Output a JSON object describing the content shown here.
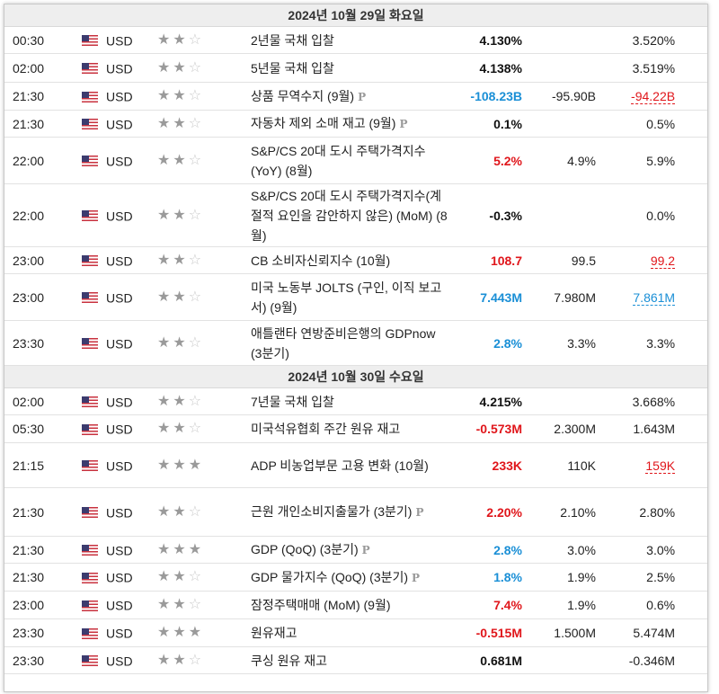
{
  "day1": {
    "header": "2024년 10월 29일 화요일",
    "rows": [
      {
        "time": "00:30",
        "currency": "USD",
        "stars": 2,
        "event": "2년물 국채 입찰",
        "pflag": false,
        "actual": "4.130%",
        "actual_class": "neu",
        "forecast": "",
        "previous": "3.520%",
        "previous_class": ""
      },
      {
        "time": "02:00",
        "currency": "USD",
        "stars": 2,
        "event": "5년물 국채 입찰",
        "pflag": false,
        "actual": "4.138%",
        "actual_class": "neu",
        "forecast": "",
        "previous": "3.519%",
        "previous_class": ""
      },
      {
        "time": "21:30",
        "currency": "USD",
        "stars": 2,
        "event": "상품 무역수지 (9월)",
        "pflag": true,
        "actual": "-108.23B",
        "actual_class": "pos",
        "forecast": "-95.90B",
        "previous": "-94.22B",
        "previous_class": "neg under"
      },
      {
        "time": "21:30",
        "currency": "USD",
        "stars": 2,
        "event": "자동차 제외 소매 재고 (9월)",
        "pflag": true,
        "actual": "0.1%",
        "actual_class": "neu",
        "forecast": "",
        "previous": "0.5%",
        "previous_class": ""
      },
      {
        "time": "22:00",
        "currency": "USD",
        "stars": 2,
        "event": "S&P/CS 20대 도시 주택가격지수 (YoY) (8월)",
        "pflag": false,
        "actual": "5.2%",
        "actual_class": "neg",
        "forecast": "4.9%",
        "previous": "5.9%",
        "previous_class": ""
      },
      {
        "time": "22:00",
        "currency": "USD",
        "stars": 2,
        "event": "S&P/CS 20대 도시 주택가격지수(계절적 요인을 감안하지 않은) (MoM) (8월)",
        "pflag": false,
        "actual": "-0.3%",
        "actual_class": "neu",
        "forecast": "",
        "previous": "0.0%",
        "previous_class": ""
      },
      {
        "time": "23:00",
        "currency": "USD",
        "stars": 2,
        "event": "CB 소비자신뢰지수 (10월)",
        "pflag": false,
        "actual": "108.7",
        "actual_class": "neg",
        "forecast": "99.5",
        "previous": "99.2",
        "previous_class": "neg under"
      },
      {
        "time": "23:00",
        "currency": "USD",
        "stars": 2,
        "event": "미국 노동부 JOLTS (구인, 이직 보고서) (9월)",
        "pflag": false,
        "actual": "7.443M",
        "actual_class": "pos",
        "forecast": "7.980M",
        "previous": "7.861M",
        "previous_class": "pos under"
      },
      {
        "time": "23:30",
        "currency": "USD",
        "stars": 2,
        "event": "애틀랜타 연방준비은행의 GDPnow (3분기)",
        "pflag": false,
        "actual": "2.8%",
        "actual_class": "pos",
        "forecast": "3.3%",
        "previous": "3.3%",
        "previous_class": ""
      }
    ]
  },
  "day2": {
    "header": "2024년 10월 30일 수요일",
    "rows": [
      {
        "time": "02:00",
        "currency": "USD",
        "stars": 2,
        "event": "7년물 국채 입찰",
        "pflag": false,
        "actual": "4.215%",
        "actual_class": "neu",
        "forecast": "",
        "previous": "3.668%",
        "previous_class": ""
      },
      {
        "time": "05:30",
        "currency": "USD",
        "stars": 2,
        "event": "미국석유협회 주간 원유 재고",
        "pflag": false,
        "actual": "-0.573M",
        "actual_class": "neg",
        "forecast": "2.300M",
        "previous": "1.643M",
        "previous_class": ""
      },
      {
        "time": "21:15",
        "currency": "USD",
        "stars": 3,
        "event": "ADP 비농업부문 고용 변화 (10월)",
        "pflag": false,
        "actual": "233K",
        "actual_class": "neg",
        "forecast": "110K",
        "previous": "159K",
        "previous_class": "neg under"
      },
      {
        "time": "21:30",
        "currency": "USD",
        "stars": 2,
        "event": "근원 개인소비지출물가 (3분기)",
        "pflag": true,
        "actual": "2.20%",
        "actual_class": "neg",
        "forecast": "2.10%",
        "previous": "2.80%",
        "previous_class": ""
      },
      {
        "time": "21:30",
        "currency": "USD",
        "stars": 3,
        "event": "GDP (QoQ) (3분기)",
        "pflag": true,
        "actual": "2.8%",
        "actual_class": "pos",
        "forecast": "3.0%",
        "previous": "3.0%",
        "previous_class": ""
      },
      {
        "time": "21:30",
        "currency": "USD",
        "stars": 2,
        "event": "GDP 물가지수 (QoQ) (3분기)",
        "pflag": true,
        "actual": "1.8%",
        "actual_class": "pos",
        "forecast": "1.9%",
        "previous": "2.5%",
        "previous_class": ""
      },
      {
        "time": "23:00",
        "currency": "USD",
        "stars": 2,
        "event": "잠정주택매매 (MoM) (9월)",
        "pflag": false,
        "actual": "7.4%",
        "actual_class": "neg",
        "forecast": "1.9%",
        "previous": "0.6%",
        "previous_class": ""
      },
      {
        "time": "23:30",
        "currency": "USD",
        "stars": 3,
        "event": "원유재고",
        "pflag": false,
        "actual": "-0.515M",
        "actual_class": "neg",
        "forecast": "1.500M",
        "previous": "5.474M",
        "previous_class": ""
      },
      {
        "time": "23:30",
        "currency": "USD",
        "stars": 2,
        "event": "쿠싱 원유 재고",
        "pflag": false,
        "actual": "0.681M",
        "actual_class": "neu",
        "forecast": "",
        "previous": "-0.346M",
        "previous_class": ""
      }
    ]
  },
  "icons": {
    "star": "star-icon",
    "flag": "us-flag-icon",
    "pflag": "preliminary-p-icon"
  },
  "colors": {
    "negative": "#e0161b",
    "positive": "#1a8fd6",
    "header_bg": "#eeeeee"
  },
  "pflag_glyph": "P"
}
